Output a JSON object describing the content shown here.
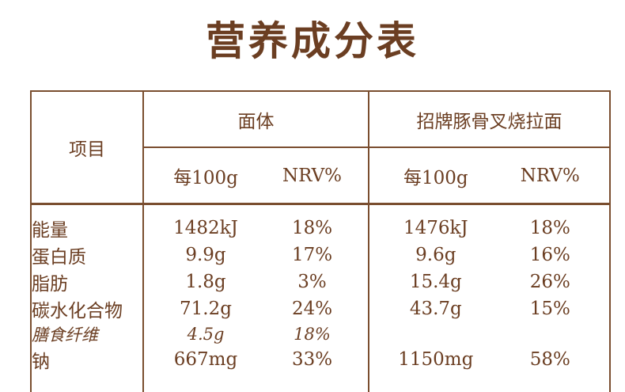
{
  "title": "营养成分表",
  "colors": {
    "text": "#6b3e22",
    "lines": "#7a4e2f",
    "background": "#ffffff"
  },
  "table": {
    "item_column_header": "项目",
    "groups": [
      {
        "label": "面体",
        "per": "每100g",
        "nrv": "NRV%"
      },
      {
        "label": "招牌豚骨叉烧拉面",
        "per": "每100g",
        "nrv": "NRV%"
      }
    ],
    "rows": [
      {
        "name": "能量",
        "noodle_value": "1482kJ",
        "noodle_nrv": "18%",
        "ramen_value": "1476kJ",
        "ramen_nrv": "18%"
      },
      {
        "name": "蛋白质",
        "noodle_value": "9.9g",
        "noodle_nrv": "17%",
        "ramen_value": "9.6g",
        "ramen_nrv": "16%"
      },
      {
        "name": "脂肪",
        "noodle_value": "1.8g",
        "noodle_nrv": "3%",
        "ramen_value": "15.4g",
        "ramen_nrv": "26%"
      },
      {
        "name": "碳水化合物",
        "noodle_value": "71.2g",
        "noodle_nrv": "24%",
        "ramen_value": "43.7g",
        "ramen_nrv": "15%"
      },
      {
        "name": "膳食纤维",
        "noodle_value": "4.5g",
        "noodle_nrv": "18%",
        "ramen_value": "",
        "ramen_nrv": ""
      },
      {
        "name": "钠",
        "noodle_value": "667mg",
        "noodle_nrv": "33%",
        "ramen_value": "1150mg",
        "ramen_nrv": "58%"
      }
    ]
  }
}
